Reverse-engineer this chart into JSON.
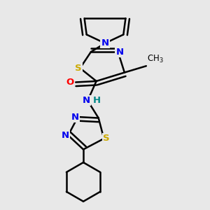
{
  "bg_color": "#e8e8e8",
  "atom_colors": {
    "C": "#000000",
    "N": "#0000ee",
    "S": "#ccaa00",
    "O": "#ff0000",
    "H": "#008888"
  },
  "bond_color": "#000000",
  "bond_width": 1.8,
  "dbo": 0.018
}
